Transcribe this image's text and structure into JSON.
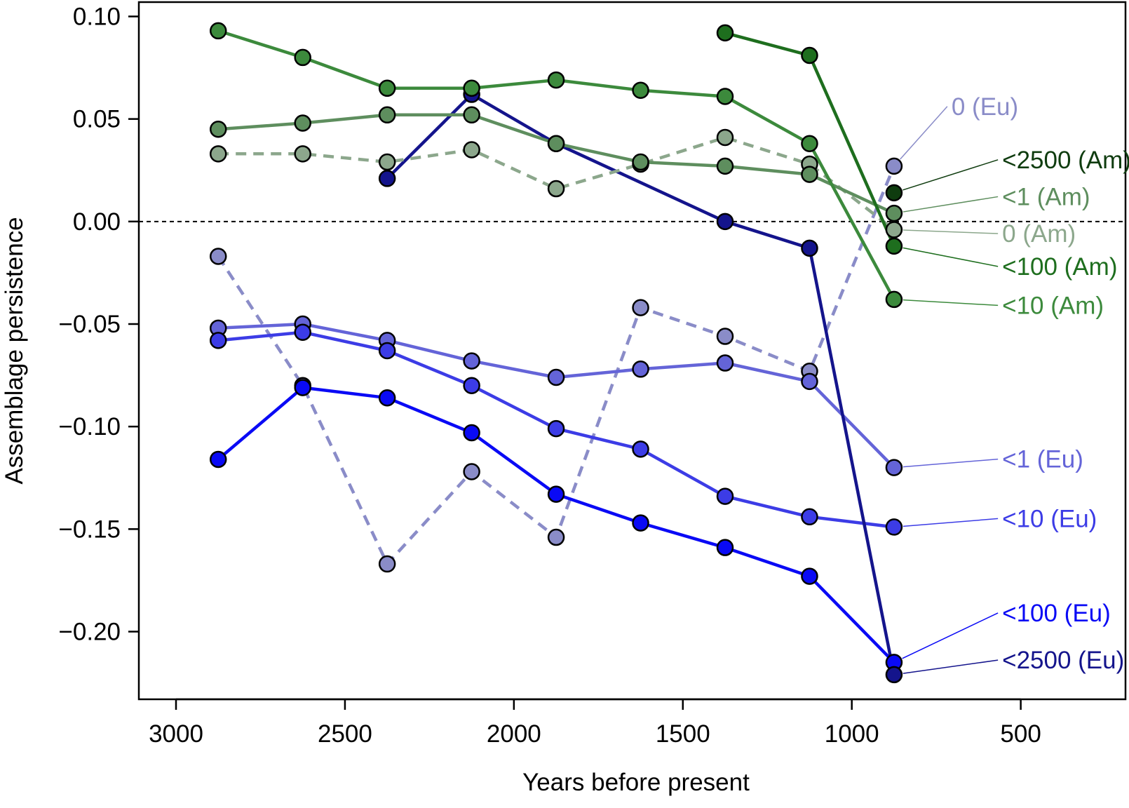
{
  "chart_data": {
    "type": "line",
    "xlabel": "Years before present",
    "ylabel": "Assemblage persistence",
    "xlim": [
      3110,
      190
    ],
    "ylim": [
      -0.233,
      0.107
    ],
    "x_reversed": true,
    "xticks": [
      3000,
      2500,
      2000,
      1500,
      1000,
      500
    ],
    "xtick_labels": [
      "3000",
      "2500",
      "2000",
      "1500",
      "1000",
      "500"
    ],
    "yticks": [
      0.1,
      0.05,
      0.0,
      -0.05,
      -0.1,
      -0.15,
      -0.2
    ],
    "ytick_labels": [
      "0.10",
      "0.05",
      "0.00",
      "−0.05",
      "−0.10",
      "−0.15",
      "−0.20"
    ],
    "reference_line": {
      "y": 0.0,
      "style": "dashed"
    },
    "grid": false,
    "series": [
      {
        "name": "0 (Eu)",
        "color": "#8a8cc8",
        "dashed": true,
        "points": [
          [
            2875,
            -0.017
          ],
          [
            2625,
            -0.08
          ],
          [
            2375,
            -0.167
          ],
          [
            2125,
            -0.122
          ],
          [
            1875,
            -0.154
          ],
          [
            1625,
            -0.042
          ],
          [
            1375,
            -0.056
          ],
          [
            1125,
            -0.073
          ],
          [
            875,
            0.027
          ]
        ]
      },
      {
        "name": "<1 (Eu)",
        "color": "#6464d8",
        "dashed": false,
        "points": [
          [
            2875,
            -0.052
          ],
          [
            2625,
            -0.05
          ],
          [
            2375,
            -0.058
          ],
          [
            2125,
            -0.068
          ],
          [
            1875,
            -0.076
          ],
          [
            1625,
            -0.072
          ],
          [
            1375,
            -0.069
          ],
          [
            1125,
            -0.078
          ],
          [
            875,
            -0.12
          ]
        ]
      },
      {
        "name": "<10 (Eu)",
        "color": "#3c3ce6",
        "dashed": false,
        "points": [
          [
            2875,
            -0.058
          ],
          [
            2625,
            -0.054
          ],
          [
            2375,
            -0.063
          ],
          [
            2125,
            -0.08
          ],
          [
            1875,
            -0.101
          ],
          [
            1625,
            -0.111
          ],
          [
            1375,
            -0.134
          ],
          [
            1125,
            -0.144
          ],
          [
            875,
            -0.149
          ]
        ]
      },
      {
        "name": "<100 (Eu)",
        "color": "#0a0af5",
        "dashed": false,
        "points": [
          [
            2875,
            -0.116
          ],
          [
            2625,
            -0.081
          ],
          [
            2375,
            -0.086
          ],
          [
            2125,
            -0.103
          ],
          [
            1875,
            -0.133
          ],
          [
            1625,
            -0.147
          ],
          [
            1375,
            -0.159
          ],
          [
            1125,
            -0.173
          ],
          [
            875,
            -0.215
          ]
        ]
      },
      {
        "name": "<2500 (Eu)",
        "color": "#14148c",
        "dashed": false,
        "points": [
          [
            2375,
            0.021
          ],
          [
            2125,
            0.062
          ],
          [
            1875,
            0.038
          ],
          [
            1375,
            0.0
          ],
          [
            1125,
            -0.013
          ],
          [
            875,
            -0.221
          ]
        ]
      },
      {
        "name": "0 (Am)",
        "color": "#8ca78c",
        "dashed": true,
        "points": [
          [
            2875,
            0.033
          ],
          [
            2625,
            0.033
          ],
          [
            2375,
            0.029
          ],
          [
            2125,
            0.035
          ],
          [
            1875,
            0.016
          ],
          [
            1625,
            0.028
          ],
          [
            1375,
            0.041
          ],
          [
            1125,
            0.028
          ],
          [
            875,
            -0.004
          ]
        ]
      },
      {
        "name": "<1 (Am)",
        "color": "#5e8e5e",
        "dashed": false,
        "points": [
          [
            2875,
            0.045
          ],
          [
            2625,
            0.048
          ],
          [
            2375,
            0.052
          ],
          [
            2125,
            0.052
          ],
          [
            1875,
            0.038
          ],
          [
            1625,
            0.029
          ],
          [
            1375,
            0.027
          ],
          [
            1125,
            0.023
          ],
          [
            875,
            0.004
          ]
        ]
      },
      {
        "name": "<10 (Am)",
        "color": "#3c8a3c",
        "dashed": false,
        "points": [
          [
            2875,
            0.093
          ],
          [
            2625,
            0.08
          ],
          [
            2375,
            0.065
          ],
          [
            2125,
            0.065
          ],
          [
            1875,
            0.069
          ],
          [
            1625,
            0.064
          ],
          [
            1375,
            0.061
          ],
          [
            1125,
            0.038
          ],
          [
            875,
            -0.038
          ]
        ]
      },
      {
        "name": "<100 (Am)",
        "color": "#1e6e1e",
        "dashed": false,
        "points": [
          [
            1375,
            0.092
          ],
          [
            1125,
            0.081
          ],
          [
            875,
            -0.012
          ]
        ]
      },
      {
        "name": "<2500 (Am)",
        "color": "#0f3c0f",
        "dashed": false,
        "points": [
          [
            875,
            0.014
          ]
        ]
      }
    ],
    "annotations": [
      {
        "text": "0 (Eu)",
        "color": "#8a8cc8",
        "series": "0 (Eu)",
        "label_x": 705,
        "label_y": 0.052
      },
      {
        "text": "<2500 (Am)",
        "color": "#0f3c0f",
        "series": "<2500 (Am)",
        "label_x": 555,
        "label_y": 0.026
      },
      {
        "text": "<1 (Am)",
        "color": "#5e8e5e",
        "series": "<1 (Am)",
        "label_x": 555,
        "label_y": 0.008
      },
      {
        "text": "0 (Am)",
        "color": "#8ca78c",
        "series": "0 (Am)",
        "label_x": 555,
        "label_y": -0.01
      },
      {
        "text": "<100 (Am)",
        "color": "#1e6e1e",
        "series": "<100 (Am)",
        "label_x": 555,
        "label_y": -0.026
      },
      {
        "text": "<10 (Am)",
        "color": "#3c8a3c",
        "series": "<10 (Am)",
        "label_x": 555,
        "label_y": -0.045
      },
      {
        "text": "<1 (Eu)",
        "color": "#6464d8",
        "series": "<1 (Eu)",
        "label_x": 555,
        "label_y": -0.12
      },
      {
        "text": "<10 (Eu)",
        "color": "#3c3ce6",
        "series": "<10 (Eu)",
        "label_x": 555,
        "label_y": -0.149
      },
      {
        "text": "<100 (Eu)",
        "color": "#0a0af5",
        "series": "<100 (Eu)",
        "label_x": 555,
        "label_y": -0.195
      },
      {
        "text": "<2500 (Eu)",
        "color": "#14148c",
        "series": "<2500 (Eu)",
        "label_x": 555,
        "label_y": -0.218
      }
    ]
  }
}
